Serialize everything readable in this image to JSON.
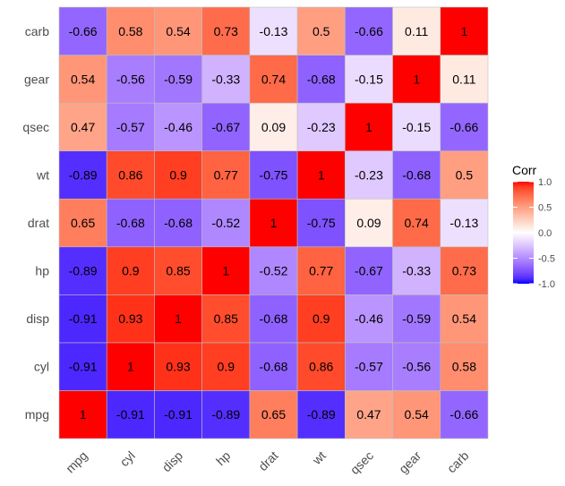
{
  "chart_data": {
    "type": "heatmap",
    "x_categories": [
      "mpg",
      "cyl",
      "disp",
      "hp",
      "drat",
      "wt",
      "qsec",
      "gear",
      "carb"
    ],
    "y_categories": [
      "mpg",
      "cyl",
      "disp",
      "hp",
      "drat",
      "wt",
      "qsec",
      "gear",
      "carb"
    ],
    "values": [
      [
        1,
        -0.91,
        -0.91,
        -0.89,
        0.65,
        -0.89,
        0.47,
        0.54,
        -0.66
      ],
      [
        -0.91,
        1,
        0.93,
        0.9,
        -0.68,
        0.86,
        -0.57,
        -0.56,
        0.58
      ],
      [
        -0.91,
        0.93,
        1,
        0.85,
        -0.68,
        0.9,
        -0.46,
        -0.59,
        0.54
      ],
      [
        -0.89,
        0.9,
        0.85,
        1,
        -0.52,
        0.77,
        -0.67,
        -0.33,
        0.73
      ],
      [
        0.65,
        -0.68,
        -0.68,
        -0.52,
        1,
        -0.75,
        0.09,
        0.74,
        -0.13
      ],
      [
        -0.89,
        0.86,
        0.9,
        0.77,
        -0.75,
        1,
        -0.23,
        -0.68,
        0.5
      ],
      [
        0.47,
        -0.57,
        -0.46,
        -0.67,
        0.09,
        -0.23,
        1,
        -0.15,
        -0.66
      ],
      [
        0.54,
        -0.56,
        -0.59,
        -0.33,
        0.74,
        -0.68,
        -0.15,
        1,
        0.11
      ],
      [
        -0.66,
        0.58,
        0.54,
        0.73,
        -0.13,
        0.5,
        -0.66,
        0.11,
        1
      ]
    ],
    "legend": {
      "title": "Corr",
      "ticks": [
        "1.0",
        "0.5",
        "0.0",
        "-0.5",
        "-1.0"
      ],
      "range": [
        -1,
        1
      ],
      "placement": "right"
    },
    "colors": {
      "low": "#0000FF",
      "mid": "#FFFFFF",
      "high": "#FF0000",
      "border": "#BEBEBE"
    },
    "xlabel": "",
    "ylabel": "",
    "grid": false
  }
}
